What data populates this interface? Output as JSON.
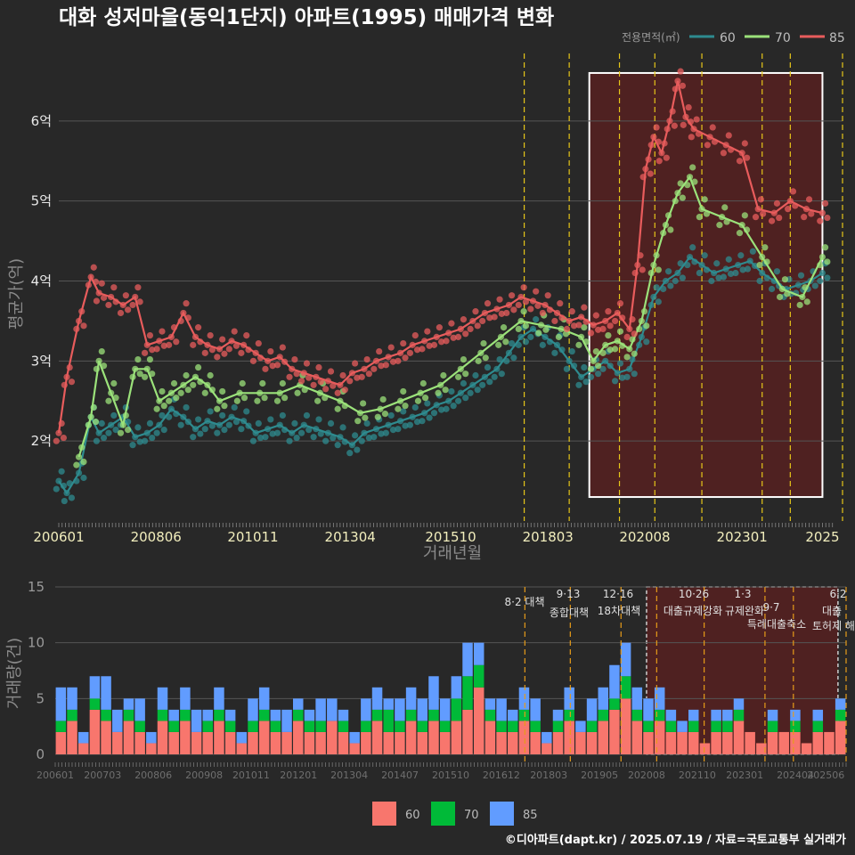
{
  "title": "대화 성저마을(동익1단지) 아파트(1995) 매매가격 변화",
  "footer": "©디아파트(dapt.kr) / 2025.07.19 / 자료=국토교통부 실거래가",
  "colors": {
    "s60": "#2e8b8f",
    "s70": "#9be27a",
    "s85": "#e85c5c",
    "bar60": "#f8766d",
    "bar70": "#00ba38",
    "bar85": "#619cff",
    "bg": "#282828",
    "highlight": "#5c1f1f",
    "vline": "#e6c619"
  },
  "chart_data": [
    {
      "type": "line",
      "title": "대화 성저마을(동익1단지) 아파트(1995) 매매가격 변화",
      "xlabel": "거래년월",
      "ylabel": "평균가(억)",
      "legend_title": "전용면적(㎡)",
      "legend_position": "top-right",
      "xlim": [
        2006.0,
        2025.5
      ],
      "ylim": [
        1.0,
        6.9
      ],
      "yticks": [
        {
          "v": 2,
          "label": "2억"
        },
        {
          "v": 3,
          "label": "3억"
        },
        {
          "v": 4,
          "label": "4억"
        },
        {
          "v": 5,
          "label": "5억"
        },
        {
          "v": 6,
          "label": "6억"
        }
      ],
      "xticks": [
        {
          "v": 2006.0,
          "label": "200601"
        },
        {
          "v": 2008.42,
          "label": "200806"
        },
        {
          "v": 2010.83,
          "label": "201011"
        },
        {
          "v": 2013.25,
          "label": "201304"
        },
        {
          "v": 2015.75,
          "label": "201510"
        },
        {
          "v": 2018.17,
          "label": "201803"
        },
        {
          "v": 2020.58,
          "label": "202008"
        },
        {
          "v": 2023.0,
          "label": "202301"
        },
        {
          "v": 2025.0,
          "label": "2025"
        }
      ],
      "highlight_region": {
        "x0": 2019.2,
        "x1": 2025.0,
        "y0": 1.3,
        "y1": 6.6
      },
      "policy_lines": [
        2017.58,
        2018.7,
        2019.95,
        2020.83,
        2022.0,
        2023.5,
        2024.2,
        2025.5
      ],
      "series": [
        {
          "name": "60",
          "x": [
            2006.0,
            2006.2,
            2006.5,
            2006.8,
            2007.0,
            2007.3,
            2007.6,
            2007.9,
            2008.2,
            2008.5,
            2008.8,
            2009.1,
            2009.4,
            2009.7,
            2010.0,
            2010.3,
            2010.6,
            2010.9,
            2011.2,
            2011.5,
            2011.8,
            2012.1,
            2012.4,
            2012.7,
            2013.0,
            2013.3,
            2013.6,
            2013.9,
            2014.2,
            2014.5,
            2014.8,
            2015.1,
            2015.4,
            2015.7,
            2016.0,
            2016.3,
            2016.6,
            2016.9,
            2017.2,
            2017.5,
            2017.8,
            2018.1,
            2018.4,
            2018.7,
            2019.0,
            2019.3,
            2019.6,
            2019.9,
            2020.2,
            2020.5,
            2020.8,
            2021.1,
            2021.4,
            2021.7,
            2022.0,
            2022.3,
            2022.6,
            2022.9,
            2023.2,
            2023.5,
            2023.8,
            2024.1,
            2024.4,
            2024.7,
            2025.0
          ],
          "y": [
            1.5,
            1.35,
            1.6,
            2.3,
            2.1,
            2.2,
            2.3,
            2.05,
            2.1,
            2.2,
            2.4,
            2.3,
            2.15,
            2.25,
            2.2,
            2.3,
            2.25,
            2.1,
            2.15,
            2.2,
            2.1,
            2.2,
            2.15,
            2.1,
            2.05,
            1.95,
            2.1,
            2.15,
            2.2,
            2.25,
            2.3,
            2.35,
            2.45,
            2.5,
            2.6,
            2.7,
            2.8,
            2.9,
            3.1,
            3.3,
            3.4,
            3.3,
            3.2,
            3.0,
            2.8,
            2.9,
            3.0,
            2.85,
            2.9,
            3.3,
            3.8,
            4.0,
            4.1,
            4.3,
            4.2,
            4.1,
            4.15,
            4.2,
            4.25,
            4.1,
            4.0,
            3.9,
            3.95,
            4.0,
            4.1
          ]
        },
        {
          "name": "70",
          "x": [
            2006.5,
            2006.8,
            2007.0,
            2007.3,
            2007.6,
            2007.9,
            2008.2,
            2008.5,
            2008.8,
            2009.1,
            2009.4,
            2009.7,
            2010.0,
            2010.5,
            2011.0,
            2011.5,
            2012.0,
            2012.5,
            2013.0,
            2013.5,
            2014.0,
            2014.5,
            2015.0,
            2015.5,
            2016.0,
            2016.5,
            2017.0,
            2017.5,
            2018.0,
            2018.5,
            2019.0,
            2019.3,
            2019.6,
            2019.9,
            2020.2,
            2020.5,
            2020.8,
            2021.1,
            2021.4,
            2021.7,
            2022.0,
            2022.5,
            2023.0,
            2023.5,
            2024.0,
            2024.5,
            2025.0
          ],
          "y": [
            1.8,
            2.3,
            3.0,
            2.6,
            2.2,
            2.9,
            2.9,
            2.5,
            2.6,
            2.7,
            2.8,
            2.7,
            2.5,
            2.6,
            2.6,
            2.6,
            2.7,
            2.6,
            2.5,
            2.35,
            2.4,
            2.5,
            2.6,
            2.7,
            2.9,
            3.1,
            3.3,
            3.5,
            3.45,
            3.4,
            3.3,
            3.0,
            3.2,
            3.25,
            3.15,
            3.5,
            4.2,
            4.7,
            5.1,
            5.3,
            4.9,
            4.8,
            4.7,
            4.3,
            3.9,
            3.8,
            4.3
          ]
        },
        {
          "name": "85",
          "x": [
            2006.0,
            2006.2,
            2006.5,
            2006.8,
            2007.0,
            2007.3,
            2007.6,
            2007.9,
            2008.2,
            2008.5,
            2008.8,
            2009.1,
            2009.4,
            2009.7,
            2010.0,
            2010.3,
            2010.6,
            2010.9,
            2011.2,
            2011.5,
            2011.8,
            2012.1,
            2012.4,
            2012.7,
            2013.0,
            2013.3,
            2013.6,
            2013.9,
            2014.2,
            2014.5,
            2014.8,
            2015.1,
            2015.4,
            2015.7,
            2016.0,
            2016.3,
            2016.6,
            2016.9,
            2017.2,
            2017.5,
            2017.8,
            2018.1,
            2018.4,
            2018.7,
            2019.0,
            2019.3,
            2019.6,
            2019.9,
            2020.2,
            2020.4,
            2020.6,
            2020.8,
            2021.0,
            2021.2,
            2021.4,
            2021.6,
            2021.8,
            2022.2,
            2022.6,
            2023.0,
            2023.4,
            2023.8,
            2024.2,
            2024.6,
            2025.0
          ],
          "y": [
            2.1,
            2.8,
            3.5,
            4.05,
            3.85,
            3.8,
            3.7,
            3.8,
            3.2,
            3.25,
            3.3,
            3.6,
            3.3,
            3.2,
            3.15,
            3.25,
            3.2,
            3.1,
            3.0,
            3.05,
            2.9,
            2.85,
            2.8,
            2.75,
            2.7,
            2.85,
            2.9,
            3.0,
            3.05,
            3.1,
            3.2,
            3.25,
            3.3,
            3.35,
            3.4,
            3.5,
            3.6,
            3.65,
            3.7,
            3.8,
            3.75,
            3.7,
            3.6,
            3.5,
            3.55,
            3.45,
            3.5,
            3.6,
            3.4,
            4.2,
            5.4,
            5.8,
            5.6,
            6.0,
            6.5,
            6.05,
            5.9,
            5.8,
            5.7,
            5.6,
            4.9,
            4.85,
            5.0,
            4.9,
            4.85
          ]
        }
      ]
    },
    {
      "type": "bar",
      "ylabel": "거래량(건)",
      "ylim": [
        0,
        15
      ],
      "yticks": [
        {
          "v": 0,
          "label": "0"
        },
        {
          "v": 5,
          "label": "5"
        },
        {
          "v": 10,
          "label": "10"
        },
        {
          "v": 15,
          "label": "15"
        }
      ],
      "xticks": [
        {
          "v": 2006.0,
          "label": "200601"
        },
        {
          "v": 2007.17,
          "label": "200703"
        },
        {
          "v": 2008.42,
          "label": "200806"
        },
        {
          "v": 2009.67,
          "label": "200908"
        },
        {
          "v": 2010.83,
          "label": "201011"
        },
        {
          "v": 2012.0,
          "label": "201201"
        },
        {
          "v": 2013.25,
          "label": "201304"
        },
        {
          "v": 2014.5,
          "label": "201407"
        },
        {
          "v": 2015.75,
          "label": "201510"
        },
        {
          "v": 2017.0,
          "label": "201612"
        },
        {
          "v": 2018.17,
          "label": "201803"
        },
        {
          "v": 2019.42,
          "label": "201905"
        },
        {
          "v": 2020.58,
          "label": "202008"
        },
        {
          "v": 2021.83,
          "label": "202110"
        },
        {
          "v": 2023.0,
          "label": "202301"
        },
        {
          "v": 2024.25,
          "label": "202404"
        },
        {
          "v": 2025.0,
          "label": "202506"
        }
      ],
      "stack_order": [
        "60",
        "70",
        "85"
      ],
      "series": [
        {
          "name": "60",
          "values": [
            2,
            3,
            1,
            4,
            3,
            2,
            3,
            2,
            1,
            3,
            2,
            3,
            2,
            2,
            3,
            2,
            1,
            2,
            3,
            2,
            2,
            3,
            2,
            2,
            3,
            2,
            1,
            2,
            3,
            2,
            2,
            3,
            2,
            3,
            2,
            3,
            4,
            6,
            3,
            2,
            2,
            3,
            2,
            1,
            2,
            3,
            2,
            2,
            3,
            4,
            5,
            3,
            2,
            3,
            2,
            2,
            2,
            1,
            2,
            2,
            3,
            2,
            1,
            2,
            2,
            2,
            1,
            2,
            2,
            3
          ]
        },
        {
          "name": "70",
          "values": [
            1,
            1,
            0,
            1,
            1,
            0,
            1,
            1,
            0,
            1,
            1,
            1,
            0,
            1,
            1,
            1,
            0,
            1,
            1,
            1,
            0,
            1,
            1,
            1,
            0,
            1,
            0,
            1,
            1,
            2,
            1,
            1,
            1,
            1,
            1,
            2,
            3,
            2,
            1,
            1,
            1,
            1,
            1,
            0,
            1,
            1,
            0,
            1,
            1,
            1,
            2,
            1,
            1,
            1,
            1,
            0,
            1,
            0,
            1,
            1,
            1,
            0,
            0,
            1,
            0,
            1,
            0,
            1,
            0,
            1
          ]
        },
        {
          "name": "85",
          "values": [
            3,
            2,
            1,
            2,
            3,
            2,
            1,
            2,
            1,
            2,
            1,
            2,
            2,
            1,
            2,
            1,
            1,
            2,
            2,
            1,
            2,
            1,
            1,
            2,
            2,
            1,
            1,
            2,
            2,
            1,
            2,
            2,
            2,
            3,
            2,
            2,
            3,
            2,
            1,
            2,
            1,
            2,
            2,
            1,
            1,
            2,
            1,
            2,
            2,
            3,
            3,
            2,
            2,
            2,
            1,
            1,
            1,
            0,
            1,
            1,
            1,
            0,
            0,
            1,
            0,
            1,
            0,
            1,
            0,
            1
          ]
        }
      ],
      "annotations": [
        "8·2 대책",
        "9·13 종합대책",
        "12·16 18차대책",
        "10·26 대출규제강화",
        "1·3 규제완화",
        "9·7 특례대출축소",
        "6·2 토허제 해",
        "대출"
      ],
      "legend": [
        "60",
        "70",
        "85"
      ]
    }
  ]
}
